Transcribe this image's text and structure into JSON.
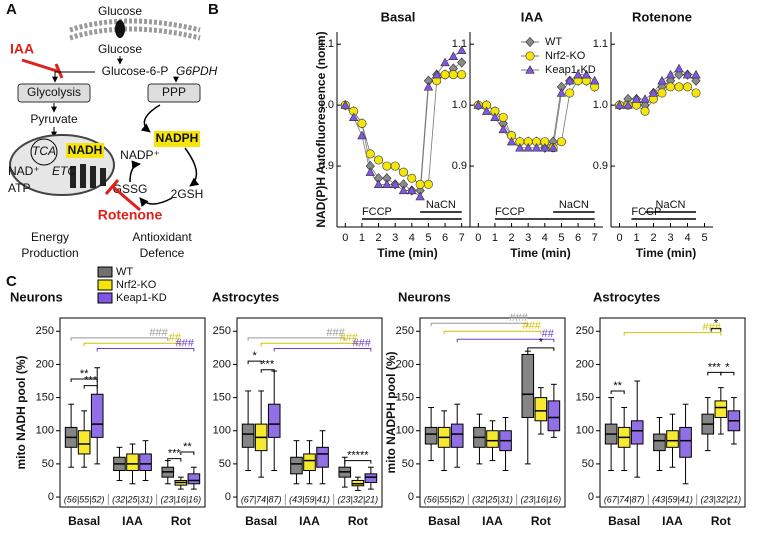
{
  "panel_labels": [
    "A",
    "B",
    "C"
  ],
  "diagram": {
    "glucose_outside": "Glucose",
    "glucose_inside": "Glucose",
    "inhibitor_1": "IAA",
    "g6p": "Glucose-6-P",
    "enzyme": "G6PDH",
    "glycolysis": "Glycolysis",
    "ppp": "PPP",
    "pyruvate": "Pyruvate",
    "tca": "TCA",
    "nadh": "NADH",
    "nad": "NAD⁺",
    "atp": "ATP",
    "etc": "ETC",
    "nadph": "NADPH",
    "nadp": "NADP⁺",
    "gssg": "GSSG",
    "gsh": "2GSH",
    "inhibitor_2": "Rotenone",
    "energy": [
      "Energy",
      "Production"
    ],
    "antioxidant": [
      "Antioxidant",
      "Defence"
    ]
  },
  "chart_data": [
    {
      "type": "line",
      "title": "Basal",
      "ylabel": "NAD(P)H Autofluorescence (norm)",
      "xlabel": "Time (min)",
      "x": [
        0,
        0.5,
        1,
        1.5,
        2,
        2.5,
        3,
        3.5,
        4,
        4.5,
        5,
        5.5,
        6,
        6.5,
        7
      ],
      "series": [
        {
          "color": "#8a8a8a",
          "marker": "diamond",
          "values": [
            1.0,
            0.99,
            0.97,
            0.9,
            0.88,
            0.88,
            0.87,
            0.87,
            0.86,
            0.86,
            1.04,
            1.05,
            1.05,
            1.06,
            1.07
          ]
        },
        {
          "color": "#f5e50a",
          "marker": "circle",
          "values": [
            1.0,
            0.99,
            0.97,
            0.92,
            0.91,
            0.9,
            0.9,
            0.89,
            0.88,
            0.87,
            0.87,
            1.04,
            1.05,
            1.05,
            1.05
          ]
        },
        {
          "color": "#7e57e2",
          "marker": "triangle",
          "values": [
            1.0,
            0.98,
            0.95,
            0.89,
            0.87,
            0.87,
            0.87,
            0.86,
            0.86,
            0.85,
            1.03,
            1.05,
            1.07,
            1.08,
            1.09
          ]
        }
      ],
      "xlim": [
        -0.5,
        7.5
      ],
      "xticks": [
        0,
        1,
        2,
        3,
        4,
        5,
        6,
        7
      ],
      "ylim": [
        0.8,
        1.12
      ],
      "yticks": [
        0.9,
        {
          "value": 1,
          "label": "1.0"
        },
        1.1
      ],
      "annotations": [
        {
          "text": "FCCP",
          "start": 1,
          "end": 7
        },
        {
          "text": "NaCN",
          "start": 4.5,
          "end": 7
        }
      ]
    },
    {
      "type": "line",
      "title": "IAA",
      "xlabel": "Time (min)",
      "legend": "upper right",
      "x": [
        0,
        0.5,
        1,
        1.5,
        2,
        2.5,
        3,
        3.5,
        4,
        4.5,
        5,
        5.5,
        6,
        6.5,
        7
      ],
      "series": [
        {
          "name": "WT",
          "color": "#8a8a8a",
          "marker": "diamond",
          "values": [
            1.0,
            1.0,
            0.99,
            0.97,
            0.95,
            0.94,
            0.94,
            0.94,
            0.93,
            0.94,
            1.03,
            1.04,
            1.04,
            1.04,
            1.03
          ]
        },
        {
          "name": "Nrf2-KO",
          "color": "#f5e50a",
          "marker": "circle",
          "values": [
            1.0,
            1.0,
            0.99,
            0.98,
            0.95,
            0.94,
            0.94,
            0.94,
            0.94,
            0.93,
            0.94,
            1.02,
            1.04,
            1.04,
            1.03
          ]
        },
        {
          "name": "Keap1-KD",
          "color": "#7e57e2",
          "marker": "triangle",
          "values": [
            1.0,
            0.99,
            0.98,
            0.96,
            0.94,
            0.93,
            0.93,
            0.93,
            0.93,
            0.93,
            1.02,
            1.04,
            1.05,
            1.05,
            1.04
          ]
        }
      ],
      "xlim": [
        -0.5,
        7.5
      ],
      "xticks": [
        0,
        1,
        2,
        3,
        4,
        5,
        6,
        7
      ],
      "ylim": [
        0.8,
        1.12
      ],
      "yticks": [
        0.9,
        {
          "value": 1,
          "label": "1.0"
        },
        1.1
      ],
      "annotations": [
        {
          "text": "FCCP",
          "start": 1,
          "end": 7
        },
        {
          "text": "NaCN",
          "start": 4.5,
          "end": 7
        }
      ]
    },
    {
      "type": "line",
      "title": "Rotenone",
      "xlabel": "Time (min)",
      "x": [
        0,
        0.5,
        1,
        1.5,
        2,
        2.5,
        3,
        3.5,
        4,
        4.5
      ],
      "series": [
        {
          "color": "#8a8a8a",
          "marker": "diamond",
          "values": [
            1.0,
            1.01,
            1.01,
            1.0,
            1.02,
            1.03,
            1.04,
            1.05,
            1.05,
            1.04
          ]
        },
        {
          "color": "#f5e50a",
          "marker": "circle",
          "values": [
            1.0,
            1.0,
            1.0,
            0.99,
            1.01,
            1.02,
            1.03,
            1.03,
            1.03,
            1.02
          ]
        },
        {
          "color": "#7e57e2",
          "marker": "triangle",
          "values": [
            1.0,
            1.0,
            1.01,
            1.01,
            1.02,
            1.04,
            1.05,
            1.06,
            1.05,
            1.05
          ]
        }
      ],
      "xlim": [
        -0.5,
        5.5
      ],
      "xticks": [
        0,
        1,
        2,
        3,
        4,
        5
      ],
      "ylim": [
        0.8,
        1.12
      ],
      "yticks": [
        0.9,
        {
          "value": 1,
          "label": "1.0"
        },
        1.1
      ],
      "annotations": [
        {
          "text": "FCCP",
          "start": 0.7,
          "end": 4.5
        },
        {
          "text": "NaCN",
          "start": 1.5,
          "end": 4.5
        }
      ]
    },
    {
      "type": "box",
      "title": "Neurons",
      "ylabel": "mito NADH pool (%)",
      "legend": "top",
      "categories": [
        "Basal",
        "IAA",
        "Rot"
      ],
      "n_labels": [
        "(56|55|52)",
        "(32|25|31)",
        "(23|16|16)"
      ],
      "series": [
        {
          "name": "WT",
          "color": "#707070",
          "values": [
            {
              "min": 45,
              "q1": 75,
              "median": 90,
              "q3": 105,
              "max": 140
            },
            {
              "min": 25,
              "q1": 40,
              "median": 50,
              "q3": 60,
              "max": 75
            },
            {
              "min": 20,
              "q1": 30,
              "median": 38,
              "q3": 45,
              "max": 55
            }
          ]
        },
        {
          "name": "Nrf2-KO",
          "color": "#f5e50a",
          "values": [
            {
              "min": 45,
              "q1": 65,
              "median": 80,
              "q3": 100,
              "max": 130
            },
            {
              "min": 20,
              "q1": 40,
              "median": 50,
              "q3": 65,
              "max": 80
            },
            {
              "min": 12,
              "q1": 18,
              "median": 22,
              "q3": 25,
              "max": 30
            }
          ]
        },
        {
          "name": "Keap1-KD",
          "color": "#7e57e2",
          "values": [
            {
              "min": 50,
              "q1": 90,
              "median": 110,
              "q3": 155,
              "max": 195
            },
            {
              "min": 25,
              "q1": 40,
              "median": 50,
              "q3": 65,
              "max": 85
            },
            {
              "min": 12,
              "q1": 20,
              "median": 25,
              "q3": 35,
              "max": 45
            }
          ]
        }
      ],
      "ylim": [
        -15,
        270
      ],
      "yticks": [
        0,
        50,
        100,
        150,
        200,
        250
      ],
      "annotations": [
        {
          "text": "###",
          "color": "#999999"
        },
        {
          "text": "##",
          "color": "#d4c000"
        },
        {
          "text": "###",
          "color": "#6a3fd0"
        },
        {
          "text": "**",
          "color": "#000000"
        },
        {
          "text": "***",
          "color": "#000000"
        },
        {
          "text": "***",
          "color": "#000000"
        },
        {
          "text": "**",
          "color": "#000000"
        }
      ]
    },
    {
      "type": "box",
      "title": "Astrocytes",
      "categories": [
        "Basal",
        "IAA",
        "Rot"
      ],
      "n_labels": [
        "(67|74|87)",
        "(43|59|41)",
        "(23|32|21)"
      ],
      "series": [
        {
          "color": "#707070",
          "values": [
            {
              "min": 40,
              "q1": 75,
              "median": 95,
              "q3": 110,
              "max": 160
            },
            {
              "min": 20,
              "q1": 35,
              "median": 50,
              "q3": 60,
              "max": 85
            },
            {
              "min": 15,
              "q1": 30,
              "median": 38,
              "q3": 45,
              "max": 60
            }
          ]
        },
        {
          "color": "#f5e50a",
          "values": [
            {
              "min": 30,
              "q1": 70,
              "median": 90,
              "q3": 110,
              "max": 160
            },
            {
              "min": 20,
              "q1": 40,
              "median": 55,
              "q3": 65,
              "max": 85
            },
            {
              "min": 10,
              "q1": 17,
              "median": 20,
              "q3": 25,
              "max": 30
            }
          ]
        },
        {
          "color": "#7e57e2",
          "values": [
            {
              "min": 40,
              "q1": 90,
              "median": 110,
              "q3": 140,
              "max": 190
            },
            {
              "min": 20,
              "q1": 45,
              "median": 65,
              "q3": 75,
              "max": 100
            },
            {
              "min": 12,
              "q1": 22,
              "median": 30,
              "q3": 35,
              "max": 45
            }
          ]
        }
      ],
      "ylim": [
        -15,
        270
      ],
      "yticks": [
        0,
        50,
        100,
        150,
        200,
        250
      ],
      "annotations": [
        {
          "text": "###",
          "color": "#999999"
        },
        {
          "text": "###",
          "color": "#d4c000"
        },
        {
          "text": "###",
          "color": "#6a3fd0"
        },
        {
          "text": "*",
          "color": "#000000"
        },
        {
          "text": "***",
          "color": "#000000"
        },
        {
          "text": "*****",
          "color": "#000000"
        }
      ]
    },
    {
      "type": "box",
      "title": "Neurons",
      "ylabel": "mito NADPH pool (%)",
      "categories": [
        "Basal",
        "IAA",
        "Rot"
      ],
      "n_labels": [
        "(56|55|52)",
        "(32|25|31)",
        "(23|16|16)"
      ],
      "series": [
        {
          "color": "#707070",
          "values": [
            {
              "min": 55,
              "q1": 80,
              "median": 95,
              "q3": 105,
              "max": 135
            },
            {
              "min": 50,
              "q1": 75,
              "median": 90,
              "q3": 105,
              "max": 125
            },
            {
              "min": 50,
              "q1": 120,
              "median": 155,
              "q3": 215,
              "max": 220
            }
          ]
        },
        {
          "color": "#f5e50a",
          "values": [
            {
              "min": 40,
              "q1": 75,
              "median": 90,
              "q3": 105,
              "max": 130
            },
            {
              "min": 55,
              "q1": 75,
              "median": 85,
              "q3": 100,
              "max": 115
            },
            {
              "min": 95,
              "q1": 115,
              "median": 130,
              "q3": 150,
              "max": 165
            }
          ]
        },
        {
          "color": "#7e57e2",
          "values": [
            {
              "min": 45,
              "q1": 75,
              "median": 95,
              "q3": 110,
              "max": 140
            },
            {
              "min": 40,
              "q1": 70,
              "median": 85,
              "q3": 100,
              "max": 120
            },
            {
              "min": 90,
              "q1": 100,
              "median": 120,
              "q3": 145,
              "max": 170
            }
          ]
        }
      ],
      "ylim": [
        -15,
        270
      ],
      "yticks": [
        0,
        50,
        100,
        150,
        200,
        250
      ],
      "annotations": [
        {
          "text": "###",
          "color": "#999999"
        },
        {
          "text": "###",
          "color": "#d4c000"
        },
        {
          "text": "##",
          "color": "#6a3fd0"
        },
        {
          "text": "*",
          "color": "#000000"
        }
      ]
    },
    {
      "type": "box",
      "title": "Astrocytes",
      "categories": [
        "Basal",
        "IAA",
        "Rot"
      ],
      "n_labels": [
        "(67|74|87)",
        "(43|59|41)",
        "(23|32|21)"
      ],
      "series": [
        {
          "color": "#707070",
          "values": [
            {
              "min": 40,
              "q1": 80,
              "median": 95,
              "q3": 110,
              "max": 150
            },
            {
              "min": 40,
              "q1": 70,
              "median": 85,
              "q3": 95,
              "max": 120
            },
            {
              "min": 70,
              "q1": 95,
              "median": 110,
              "q3": 125,
              "max": 150
            }
          ]
        },
        {
          "color": "#f5e50a",
          "values": [
            {
              "min": 40,
              "q1": 75,
              "median": 90,
              "q3": 105,
              "max": 135
            },
            {
              "min": 45,
              "q1": 75,
              "median": 85,
              "q3": 100,
              "max": 125
            },
            {
              "min": 95,
              "q1": 120,
              "median": 135,
              "q3": 145,
              "max": 165
            }
          ]
        },
        {
          "color": "#7e57e2",
          "values": [
            {
              "min": 30,
              "q1": 80,
              "median": 100,
              "q3": 115,
              "max": 175
            },
            {
              "min": 20,
              "q1": 60,
              "median": 85,
              "q3": 105,
              "max": 140
            },
            {
              "min": 80,
              "q1": 100,
              "median": 115,
              "q3": 130,
              "max": 150
            }
          ]
        }
      ],
      "ylim": [
        -15,
        270
      ],
      "yticks": [
        0,
        50,
        100,
        150,
        200,
        250
      ],
      "annotations": [
        {
          "text": "###",
          "color": "#d4c000"
        },
        {
          "text": "*",
          "color": "#000000"
        },
        {
          "text": "***",
          "color": "#000000"
        },
        {
          "text": "*",
          "color": "#000000"
        },
        {
          "text": "**",
          "color": "#000000"
        }
      ]
    }
  ]
}
